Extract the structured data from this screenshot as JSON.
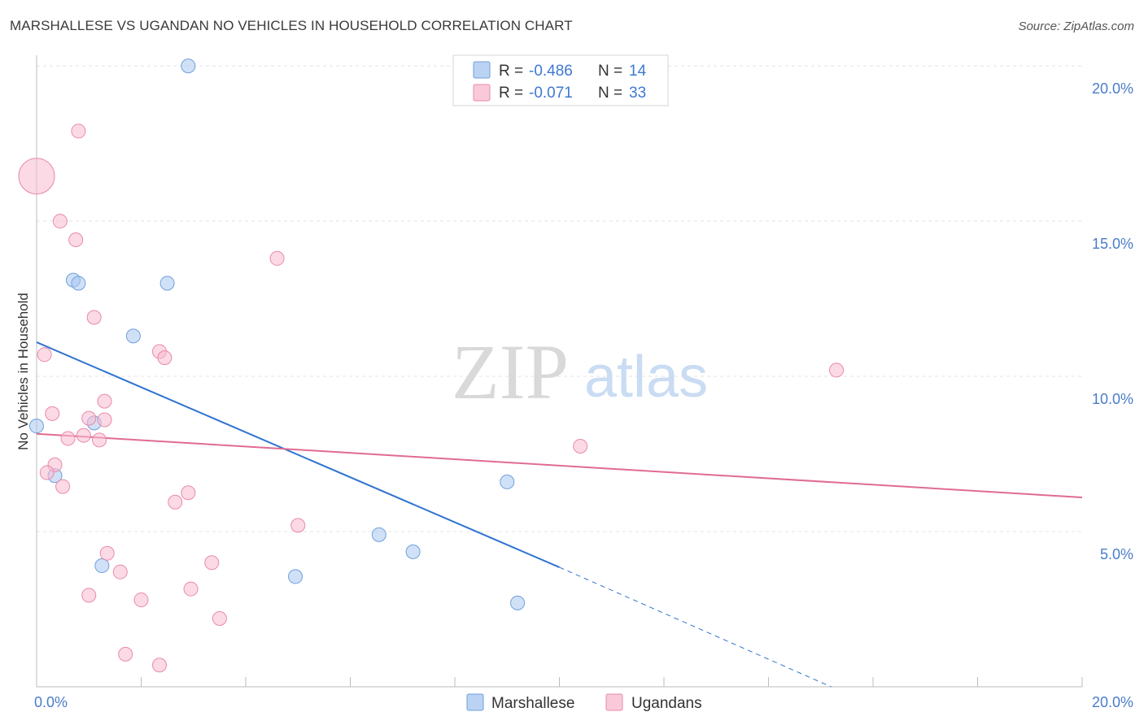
{
  "title": "MARSHALLESE VS UGANDAN NO VEHICLES IN HOUSEHOLD CORRELATION CHART",
  "source": "Source: ZipAtlas.com",
  "watermark": {
    "zip": "ZIP",
    "atlas": "atlas"
  },
  "chart_data": {
    "type": "scatter",
    "ylabel": "No Vehicles in Household",
    "xlim": [
      0,
      20
    ],
    "ylim": [
      0,
      20.5
    ],
    "x_ticks": [
      0,
      20
    ],
    "x_tick_labels": [
      "0.0%",
      "20.0%"
    ],
    "y_ticks": [
      5,
      10,
      15,
      20
    ],
    "y_tick_labels": [
      "5.0%",
      "10.0%",
      "15.0%",
      "20.0%"
    ],
    "grid": true,
    "legend_position": "top-center",
    "series": [
      {
        "name": "Marshallese",
        "color": "#a9c8f0",
        "stroke": "#6f9fdc",
        "line_color": "#2f74d0",
        "r_label": "R =",
        "r_value": "-0.486",
        "n_label": "N =",
        "n_value": "14",
        "points": [
          {
            "x": 2.9,
            "y": 20.0
          },
          {
            "x": 0.7,
            "y": 13.1
          },
          {
            "x": 0.8,
            "y": 13.0
          },
          {
            "x": 2.5,
            "y": 13.0
          },
          {
            "x": 1.85,
            "y": 11.3
          },
          {
            "x": 0.0,
            "y": 8.4
          },
          {
            "x": 1.1,
            "y": 8.5
          },
          {
            "x": 0.35,
            "y": 6.8
          },
          {
            "x": 9.0,
            "y": 6.6
          },
          {
            "x": 6.55,
            "y": 4.9
          },
          {
            "x": 7.2,
            "y": 4.35
          },
          {
            "x": 1.25,
            "y": 3.9
          },
          {
            "x": 4.95,
            "y": 3.55
          },
          {
            "x": 9.2,
            "y": 2.7
          }
        ],
        "trend": {
          "x0": 0.0,
          "y0": 11.1,
          "x1": 10.0,
          "y1": 3.85,
          "dash_x1": 15.2,
          "dash_y1": 0.0
        }
      },
      {
        "name": "Ugandans",
        "color": "#f7bccf",
        "stroke": "#e98aa9",
        "line_color": "#e06b93",
        "r_label": "R =",
        "r_value": "-0.071",
        "n_label": "N =",
        "n_value": "33",
        "points": [
          {
            "x": 0.8,
            "y": 17.9
          },
          {
            "x": 0.0,
            "y": 16.45,
            "big": true
          },
          {
            "x": 0.45,
            "y": 15.0
          },
          {
            "x": 0.75,
            "y": 14.4
          },
          {
            "x": 4.6,
            "y": 13.8
          },
          {
            "x": 1.1,
            "y": 11.9
          },
          {
            "x": 0.15,
            "y": 10.7
          },
          {
            "x": 2.35,
            "y": 10.8
          },
          {
            "x": 2.45,
            "y": 10.6
          },
          {
            "x": 15.3,
            "y": 10.2
          },
          {
            "x": 0.3,
            "y": 8.8
          },
          {
            "x": 1.3,
            "y": 9.2
          },
          {
            "x": 1.0,
            "y": 8.65
          },
          {
            "x": 1.3,
            "y": 8.6
          },
          {
            "x": 0.9,
            "y": 8.1
          },
          {
            "x": 1.2,
            "y": 7.95
          },
          {
            "x": 0.6,
            "y": 8.0
          },
          {
            "x": 10.4,
            "y": 7.75
          },
          {
            "x": 0.35,
            "y": 7.15
          },
          {
            "x": 0.2,
            "y": 6.9
          },
          {
            "x": 0.5,
            "y": 6.45
          },
          {
            "x": 2.9,
            "y": 6.25
          },
          {
            "x": 2.65,
            "y": 5.95
          },
          {
            "x": 5.0,
            "y": 5.2
          },
          {
            "x": 1.35,
            "y": 4.3
          },
          {
            "x": 3.35,
            "y": 4.0
          },
          {
            "x": 1.6,
            "y": 3.7
          },
          {
            "x": 2.95,
            "y": 3.15
          },
          {
            "x": 1.0,
            "y": 2.95
          },
          {
            "x": 2.0,
            "y": 2.8
          },
          {
            "x": 3.5,
            "y": 2.2
          },
          {
            "x": 1.7,
            "y": 1.05
          },
          {
            "x": 2.35,
            "y": 0.7
          }
        ],
        "trend": {
          "x0": 0.0,
          "y0": 8.15,
          "x1": 20.0,
          "y1": 6.1
        }
      }
    ]
  }
}
